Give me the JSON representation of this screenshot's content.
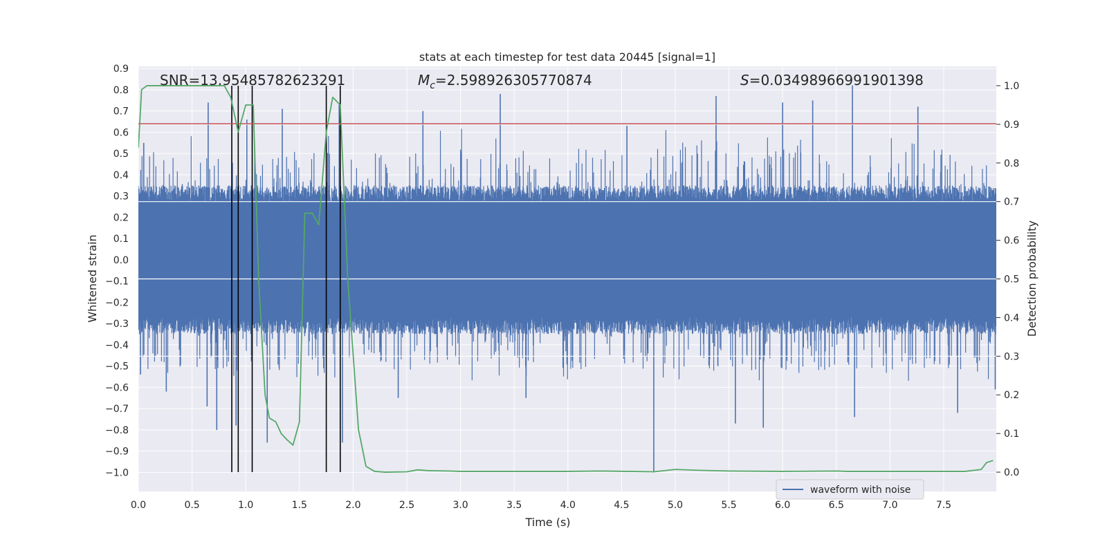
{
  "chart_data": {
    "type": "line",
    "title": "stats at each timestep for test data 20445 [signal=1]",
    "xlabel": "Time (s)",
    "ylabel": "Whitened strain",
    "ylabel_right": "Detection probability",
    "xlim": [
      0.0,
      7.99
    ],
    "ylim": [
      -1.09,
      0.91
    ],
    "ylim_right": [
      -0.05,
      1.05
    ],
    "x_ticks": [
      "0.0",
      "0.5",
      "1.0",
      "1.5",
      "2.0",
      "2.5",
      "3.0",
      "3.5",
      "4.0",
      "4.5",
      "5.0",
      "5.5",
      "6.0",
      "6.5",
      "7.0",
      "7.5"
    ],
    "x_tick_values": [
      0.0,
      0.5,
      1.0,
      1.5,
      2.0,
      2.5,
      3.0,
      3.5,
      4.0,
      4.5,
      5.0,
      5.5,
      6.0,
      6.5,
      7.0,
      7.5
    ],
    "y_ticks": [
      "0.9",
      "0.8",
      "0.7",
      "0.6",
      "0.5",
      "0.4",
      "0.3",
      "0.2",
      "0.1",
      "0.0",
      "−0.1",
      "−0.2",
      "−0.3",
      "−0.4",
      "−0.5",
      "−0.6",
      "−0.7",
      "−0.8",
      "−0.9",
      "−1.0"
    ],
    "y_tick_values": [
      0.9,
      0.8,
      0.7,
      0.6,
      0.5,
      0.4,
      0.3,
      0.2,
      0.1,
      0.0,
      -0.1,
      -0.2,
      -0.3,
      -0.4,
      -0.5,
      -0.6,
      -0.7,
      -0.8,
      -0.9,
      -1.0
    ],
    "y_right_ticks": [
      "1.0",
      "0.9",
      "0.8",
      "0.7",
      "0.6",
      "0.5",
      "0.4",
      "0.3",
      "0.2",
      "0.1",
      "0.0"
    ],
    "y_right_tick_values": [
      1.0,
      0.9,
      0.8,
      0.7,
      0.6,
      0.5,
      0.4,
      0.3,
      0.2,
      0.1,
      0.0
    ],
    "grid": true,
    "legend": {
      "entries": [
        "waveform with noise"
      ],
      "placement": "lower-right"
    },
    "annotations": {
      "snr": "SNR=13.95485782623291",
      "mc_symbol": "M",
      "mc_sub": "c",
      "mc_value": "=2.598926305770874",
      "s_symbol": "S",
      "s_value": "=0.03498966991901398"
    },
    "threshold": {
      "y": 0.64
    },
    "vertical_markers": [
      0.87,
      0.93,
      1.06,
      1.75,
      1.88
    ],
    "spikes": [
      {
        "x": 0.02,
        "y": -0.54
      },
      {
        "x": 0.05,
        "y": 0.55
      },
      {
        "x": 0.26,
        "y": -0.62
      },
      {
        "x": 0.64,
        "y": -0.69
      },
      {
        "x": 0.65,
        "y": 0.74
      },
      {
        "x": 0.73,
        "y": -0.8
      },
      {
        "x": 0.91,
        "y": -0.78
      },
      {
        "x": 1.01,
        "y": 0.66
      },
      {
        "x": 1.2,
        "y": -0.86
      },
      {
        "x": 1.34,
        "y": 0.71
      },
      {
        "x": 1.87,
        "y": 0.73
      },
      {
        "x": 1.9,
        "y": -0.86
      },
      {
        "x": 2.42,
        "y": -0.65
      },
      {
        "x": 2.65,
        "y": 0.7
      },
      {
        "x": 3.37,
        "y": 0.78
      },
      {
        "x": 3.61,
        "y": -0.65
      },
      {
        "x": 4.55,
        "y": 0.63
      },
      {
        "x": 4.8,
        "y": -1.0
      },
      {
        "x": 5.38,
        "y": 0.77
      },
      {
        "x": 5.56,
        "y": -0.77
      },
      {
        "x": 5.82,
        "y": -0.79
      },
      {
        "x": 6.0,
        "y": 0.74
      },
      {
        "x": 6.28,
        "y": 0.75
      },
      {
        "x": 6.65,
        "y": 0.82
      },
      {
        "x": 6.67,
        "y": -0.74
      },
      {
        "x": 7.26,
        "y": 0.72
      },
      {
        "x": 7.63,
        "y": -0.72
      },
      {
        "x": 7.98,
        "y": -0.61
      }
    ],
    "probability": {
      "x": [
        0.0,
        0.03,
        0.08,
        0.15,
        0.3,
        0.5,
        0.6,
        0.7,
        0.8,
        0.86,
        0.93,
        1.0,
        1.07,
        1.12,
        1.18,
        1.22,
        1.28,
        1.33,
        1.38,
        1.44,
        1.5,
        1.55,
        1.62,
        1.68,
        1.75,
        1.81,
        1.88,
        1.95,
        2.05,
        2.12,
        2.2,
        2.3,
        2.5,
        2.6,
        2.7,
        2.9,
        3.0,
        3.5,
        4.0,
        4.3,
        4.8,
        5.0,
        5.2,
        5.5,
        6.0,
        6.5,
        6.6,
        7.0,
        7.7,
        7.85,
        7.9,
        7.96
      ],
      "y": [
        0.84,
        0.99,
        1.0,
        1.0,
        1.0,
        1.0,
        1.0,
        1.0,
        1.0,
        0.97,
        0.88,
        0.95,
        0.95,
        0.5,
        0.2,
        0.14,
        0.13,
        0.1,
        0.085,
        0.07,
        0.13,
        0.67,
        0.67,
        0.64,
        0.88,
        0.97,
        0.95,
        0.5,
        0.11,
        0.015,
        0.002,
        0.0,
        0.001,
        0.006,
        0.004,
        0.003,
        0.002,
        0.002,
        0.002,
        0.003,
        0.001,
        0.007,
        0.005,
        0.003,
        0.002,
        0.003,
        0.002,
        0.002,
        0.002,
        0.007,
        0.025,
        0.03
      ]
    },
    "colors": {
      "waveform": "#4c72b0",
      "probability": "#55a868",
      "threshold": "#c44e52",
      "markers": "#000000",
      "plot_bg": "#eaeaf2",
      "grid": "#ffffff"
    }
  }
}
